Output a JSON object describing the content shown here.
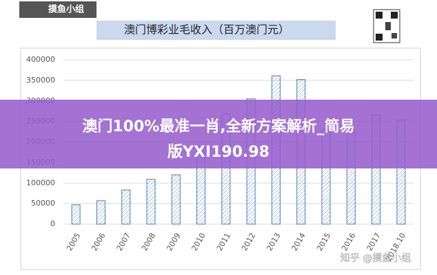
{
  "logo": "摸鱼小组",
  "watermark": "知乎 @摸鱼小组",
  "banner": {
    "line1": "澳门100%最准一肖,全新方案解析_简易",
    "line2": "版YXI190.98"
  },
  "chart_data": {
    "type": "bar",
    "title": "澳门博彩业毛收入（百万澳门元）",
    "categories": [
      "2005",
      "2006",
      "2007",
      "2008",
      "2009",
      "2010",
      "2011",
      "2012",
      "2013",
      "2014",
      "2015",
      "2016",
      "2017",
      "2018.10"
    ],
    "values": [
      47000,
      57000,
      83000,
      109000,
      120000,
      189000,
      269000,
      305000,
      361000,
      352000,
      231000,
      224000,
      266000,
      253000
    ],
    "color": "#4a7ab8",
    "ylim": [
      0,
      400000
    ],
    "yticks": [
      0,
      50000,
      100000,
      150000,
      200000,
      250000,
      300000,
      350000,
      400000
    ],
    "grid": true
  }
}
